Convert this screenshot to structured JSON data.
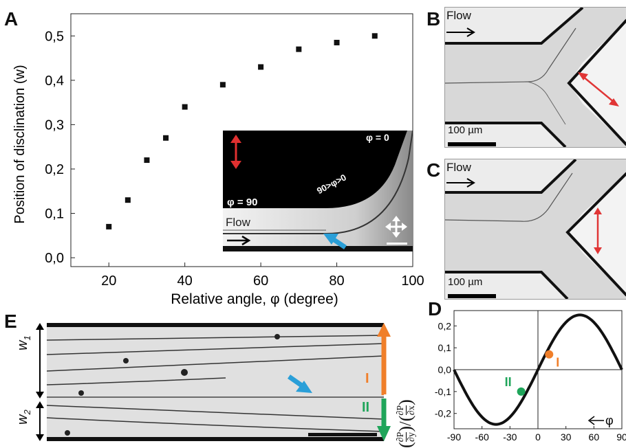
{
  "panels": {
    "A": "A",
    "B": "B",
    "C": "C",
    "D": "D",
    "E": "E"
  },
  "panelA": {
    "chart_data": {
      "type": "scatter",
      "x": [
        20,
        25,
        30,
        35,
        40,
        50,
        60,
        70,
        80,
        90
      ],
      "y": [
        0.07,
        0.13,
        0.22,
        0.27,
        0.34,
        0.39,
        0.43,
        0.47,
        0.485,
        0.5
      ],
      "xlabel": "Relative angle, φ (degree)",
      "ylabel": "Position of disclination (w)",
      "xticks": [
        "20",
        "40",
        "60",
        "80",
        "100"
      ],
      "yticks": [
        "0,0",
        "0,1",
        "0,2",
        "0,3",
        "0,4",
        "0,5"
      ],
      "xlim": [
        10,
        100
      ],
      "ylim": [
        -0.02,
        0.55
      ],
      "marker_color": "#111111"
    },
    "inset": {
      "phi0": "φ = 0",
      "phi90": "φ = 90",
      "phimid": "90>φ>0",
      "flow": "Flow"
    }
  },
  "panelB": {
    "flow": "Flow",
    "scale": "100 µm"
  },
  "panelC": {
    "flow": "Flow",
    "scale": "100 µm"
  },
  "panelD": {
    "chart_data": {
      "type": "line",
      "function": "sin(2φ)/4",
      "xticks": [
        "-90",
        "-60",
        "-30",
        "0",
        "30",
        "60",
        "90"
      ],
      "yticks": [
        "0,2",
        "0,1",
        "0,0",
        "-0,1",
        "-0,2"
      ],
      "xlim": [
        -90,
        90
      ],
      "ylim": [
        -0.27,
        0.27
      ],
      "points": [
        {
          "label": "I",
          "x": 12,
          "y": 0.07,
          "color": "#f07f2a"
        },
        {
          "label": "II",
          "x": -18,
          "y": -0.1,
          "color": "#1fa55a"
        }
      ],
      "phi_label": "φ",
      "ylabel_num_y": "∂P",
      "ylabel_den_y": "∂y",
      "ylabel_num_x": "∂P",
      "ylabel_den_x": "∂x"
    }
  },
  "panelE": {
    "w1_base": "w",
    "w1_sub": "1",
    "w2_base": "w",
    "w2_sub": "2",
    "label_I": "I",
    "label_II": "II",
    "orange": "#f07f2a",
    "green": "#1fa55a",
    "blue": "#2a9fd8"
  }
}
